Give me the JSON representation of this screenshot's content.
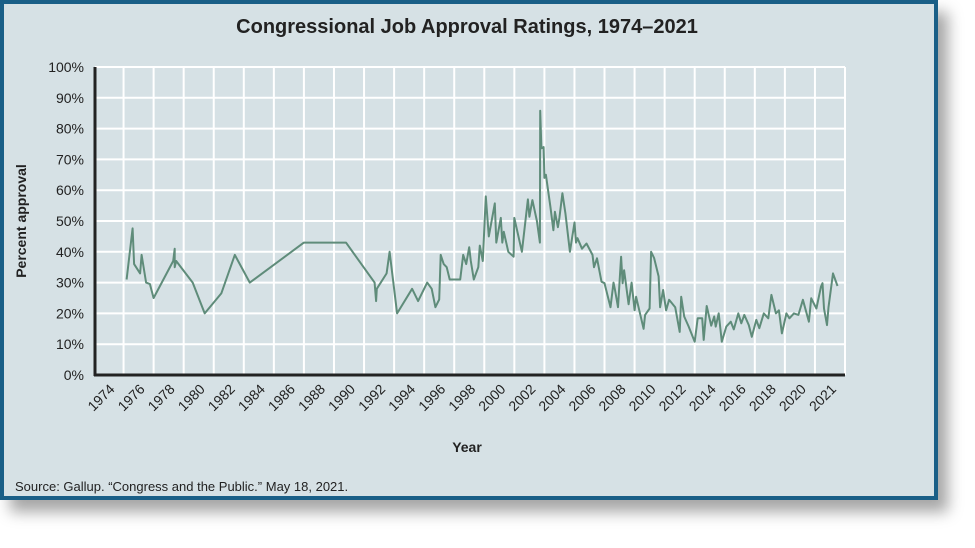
{
  "chart_data": {
    "type": "line",
    "title": "Congressional Job Approval Ratings, 1974–2021",
    "xlabel": "Year",
    "ylabel": "Percent approval",
    "source": "Source: Gallup. “Congress and the Public.” May 18, 2021.",
    "xlim": [
      1972.1,
      2022
    ],
    "ylim": [
      0,
      100
    ],
    "grid": true,
    "legend": "none",
    "line_color": "#5f8c7a",
    "x_tick_labels": [
      "1974",
      "1976",
      "1978",
      "1980",
      "1982",
      "1984",
      "1986",
      "1988",
      "1990",
      "1992",
      "1994",
      "1996",
      "1998",
      "2000",
      "2002",
      "2004",
      "2006",
      "2008",
      "2010",
      "2012",
      "2014",
      "2016",
      "2018",
      "2020",
      "2021"
    ],
    "y_tick_labels": [
      "0%",
      "10%",
      "20%",
      "30%",
      "40%",
      "50%",
      "60%",
      "70%",
      "80%",
      "90%",
      "100%"
    ],
    "series": [
      {
        "x": [
          1974.2,
          1974.6,
          1974.7,
          1975.1,
          1975.2,
          1975.5,
          1975.75,
          1976,
          1977.3,
          1977.4,
          1977.4,
          1977.5,
          1978.6,
          1979.4,
          1980.5,
          1981.4,
          1982.4,
          1986,
          1988.8,
          1990.7,
          1990.8,
          1990.85,
          1991.5,
          1991.7,
          1992.2,
          1993.2,
          1993.6,
          1994.2,
          1994.5,
          1994.75,
          1995,
          1995.1,
          1995.3,
          1995.5,
          1995.7,
          1996.4,
          1996.6,
          1996.8,
          1997,
          1997.1,
          1997.3,
          1997.6,
          1997.7,
          1997.9,
          1998.1,
          1998.3,
          1998.7,
          1998.8,
          1999.1,
          1999.2,
          1999.3,
          1999.6,
          1999.95,
          2000,
          2000.5,
          2000.9,
          2001,
          2001.2,
          2001.5,
          2001.7,
          2001.72,
          2001.8,
          2001.95,
          2002,
          2002.1,
          2002.4,
          2002.6,
          2002.7,
          2002.9,
          2003,
          2003.2,
          2003.4,
          2003.7,
          2004,
          2004.1,
          2004.2,
          2004.5,
          2004.8,
          2005.2,
          2005.3,
          2005.5,
          2005.8,
          2006,
          2006.4,
          2006.6,
          2006.7,
          2006.9,
          2007.1,
          2007.2,
          2007.3,
          2007.6,
          2007.8,
          2008,
          2008.1,
          2008.6,
          2008.7,
          2009,
          2009.1,
          2009.3,
          2009.6,
          2009.7,
          2009.9,
          2010.1,
          2010.3,
          2010.7,
          2011,
          2011.1,
          2011.3,
          2011.6,
          2012,
          2012.2,
          2012.5,
          2012.6,
          2012.8,
          2013.1,
          2013.3,
          2013.4,
          2013.6,
          2013.8,
          2014.1,
          2014.4,
          2014.6,
          2014.9,
          2015.1,
          2015.3,
          2015.6,
          2015.8,
          2016.1,
          2016.3,
          2016.6,
          2016.9,
          2017.1,
          2017.4,
          2017.6,
          2017.8,
          2018.1,
          2018.3,
          2018.6,
          2018.9,
          2019.2,
          2019.6,
          2019.75,
          2020.1,
          2020.4,
          2020.5,
          2020.6,
          2020.8,
          2020.9,
          2021.2,
          2021.5
        ],
        "y": [
          31,
          47.6,
          36,
          33,
          39,
          30,
          29.5,
          25,
          37,
          41,
          35,
          37,
          30,
          20,
          26.5,
          39,
          30,
          43,
          43,
          30,
          24,
          28,
          33,
          40,
          20,
          28,
          24,
          30,
          28,
          22,
          24.5,
          39,
          36,
          35,
          31,
          31,
          39,
          36,
          41.5,
          37,
          31,
          35,
          42,
          37,
          58,
          45,
          55.7,
          43,
          51,
          43,
          46.5,
          40,
          38.4,
          51,
          40,
          57,
          51.4,
          56.8,
          50,
          43,
          85.8,
          73.6,
          74,
          64,
          65,
          54.6,
          47,
          53,
          48,
          51,
          59,
          52.5,
          40,
          49.5,
          43,
          44.4,
          41,
          42.7,
          39,
          35,
          37.9,
          30.3,
          29.8,
          22,
          30,
          27.6,
          22,
          38.4,
          29.8,
          34,
          23,
          30,
          21,
          25.4,
          15,
          19.5,
          21.6,
          40,
          38,
          32,
          22,
          27.6,
          21,
          24.4,
          22,
          14,
          25.4,
          19,
          15.7,
          10.8,
          18.4,
          18.4,
          11.4,
          22.4,
          16,
          19,
          15.7,
          20,
          10.8,
          15.7,
          17.3,
          14.8,
          20,
          16.8,
          19.5,
          16.2,
          12.4,
          17.9,
          15.2,
          20,
          18.4,
          26,
          20,
          21,
          13.5,
          20,
          18.4,
          20,
          19.5,
          24.4,
          17.3,
          24.9,
          21.6,
          28.7,
          29.8,
          21.6,
          16.2,
          22,
          33,
          28.9
        ]
      }
    ]
  }
}
